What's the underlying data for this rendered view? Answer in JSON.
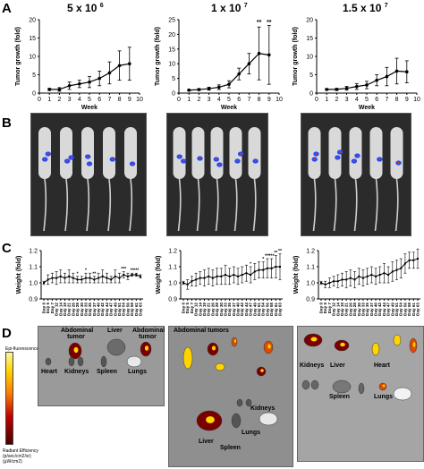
{
  "panels": {
    "A": "A",
    "B": "B",
    "C": "C",
    "D": "D"
  },
  "panelA": [
    {
      "title": "5 x 10",
      "exp": "6"
    },
    {
      "title": "1 x 10",
      "exp": "7"
    },
    {
      "title": "1.5 x 10",
      "exp": "7"
    }
  ],
  "chart_data": [
    {
      "type": "line",
      "title": "5 x 10^6",
      "xlabel": "Week",
      "ylabel": "Tumor growth (fold)",
      "xlim": [
        0,
        10
      ],
      "ylim": [
        0,
        20
      ],
      "xticks": [
        "0",
        "1",
        "2",
        "3",
        "4",
        "5",
        "6",
        "7",
        "8",
        "9",
        "10"
      ],
      "yticks": [
        "0",
        "5",
        "10",
        "15",
        "20"
      ],
      "x": [
        1,
        2,
        3,
        4,
        5,
        6,
        7,
        8,
        9
      ],
      "values": [
        1.0,
        1.0,
        2.0,
        2.5,
        3.0,
        4.0,
        5.5,
        7.5,
        8.0
      ],
      "errors": [
        0.3,
        0.5,
        1.0,
        1.0,
        1.5,
        2.0,
        3.0,
        4.0,
        4.5
      ],
      "significance": []
    },
    {
      "type": "line",
      "title": "1 x 10^7",
      "xlabel": "Week",
      "ylabel": "Tumor growth (fold)",
      "xlim": [
        0,
        10
      ],
      "ylim": [
        0,
        25
      ],
      "xticks": [
        "0",
        "1",
        "2",
        "3",
        "4",
        "5",
        "6",
        "7",
        "8",
        "9",
        "10"
      ],
      "yticks": [
        "0",
        "5",
        "10",
        "15",
        "20",
        "25"
      ],
      "x": [
        1,
        2,
        3,
        4,
        5,
        6,
        7,
        8,
        9
      ],
      "values": [
        1.0,
        1.2,
        1.5,
        2.0,
        3.0,
        6.5,
        10.0,
        13.5,
        13.0
      ],
      "errors": [
        0.2,
        0.3,
        0.5,
        0.8,
        1.2,
        2.0,
        3.5,
        9.0,
        10.0
      ],
      "significance": [
        {
          "x": 8,
          "label": "**"
        },
        {
          "x": 9,
          "label": "**"
        }
      ]
    },
    {
      "type": "line",
      "title": "1.5 x 10^7",
      "xlabel": "Week",
      "ylabel": "Tumor growth (fold)",
      "xlim": [
        0,
        10
      ],
      "ylim": [
        0,
        20
      ],
      "xticks": [
        "0",
        "1",
        "2",
        "3",
        "4",
        "5",
        "6",
        "7",
        "8",
        "9",
        "10"
      ],
      "yticks": [
        "0",
        "5",
        "10",
        "15",
        "20"
      ],
      "x": [
        1,
        2,
        3,
        4,
        5,
        6,
        7,
        8,
        9
      ],
      "values": [
        1.0,
        1.0,
        1.3,
        1.8,
        2.2,
        3.5,
        4.5,
        6.0,
        5.8
      ],
      "errors": [
        0.2,
        0.3,
        0.5,
        0.8,
        1.0,
        1.5,
        2.5,
        3.5,
        3.0
      ],
      "significance": []
    },
    {
      "type": "line",
      "title": "",
      "xlabel": "",
      "ylabel": "Weight (fold)",
      "ylim": [
        0.9,
        1.2
      ],
      "yticks": [
        "0.9",
        "1.0",
        "1.1",
        "1.2"
      ],
      "categories": [
        "Day 0",
        "Day 5",
        "Day 7",
        "Day 12",
        "Day 14",
        "Day 19",
        "Day 21",
        "Day 26",
        "Day 28",
        "Day 30",
        "Day 33",
        "Day 35",
        "Day 37",
        "Day 40",
        "Day 42",
        "Day 44",
        "Day 47",
        "Day 49",
        "Day 51",
        "Day 54",
        "Day 56",
        "Day 58",
        "Day 61",
        "Day 63"
      ],
      "values": [
        1.0,
        1.02,
        1.03,
        1.03,
        1.04,
        1.03,
        1.04,
        1.03,
        1.02,
        1.02,
        1.03,
        1.03,
        1.02,
        1.03,
        1.04,
        1.03,
        1.02,
        1.04,
        1.03,
        1.05,
        1.04,
        1.05,
        1.05,
        1.04
      ],
      "errors": [
        0.01,
        0.03,
        0.03,
        0.04,
        0.04,
        0.03,
        0.04,
        0.03,
        0.02,
        0.02,
        0.03,
        0.03,
        0.02,
        0.03,
        0.04,
        0.03,
        0.02,
        0.04,
        0.03,
        0.02,
        0.02,
        0.01,
        0.01,
        0.01
      ],
      "significance": [
        {
          "index": 8,
          "label": "*"
        },
        {
          "index": 10,
          "label": "*"
        },
        {
          "index": 12,
          "label": "**"
        },
        {
          "index": 19,
          "label": "***"
        },
        {
          "index": 21,
          "label": "**"
        },
        {
          "index": 22,
          "label": "***"
        }
      ]
    },
    {
      "type": "line",
      "title": "",
      "xlabel": "",
      "ylabel": "Weight (fold)",
      "ylim": [
        0.9,
        1.2
      ],
      "yticks": [
        "0.9",
        "1.0",
        "1.1",
        "1.2"
      ],
      "categories": [
        "Day 0",
        "Day 5",
        "Day 7",
        "Day 12",
        "Day 14",
        "Day 19",
        "Day 21",
        "Day 26",
        "Day 28",
        "Day 30",
        "Day 33",
        "Day 35",
        "Day 37",
        "Day 40",
        "Day 42",
        "Day 44",
        "Day 47",
        "Day 49",
        "Day 51",
        "Day 54",
        "Day 56",
        "Day 58",
        "Day 61",
        "Day 63"
      ],
      "values": [
        1.0,
        0.99,
        1.01,
        1.02,
        1.03,
        1.03,
        1.04,
        1.03,
        1.04,
        1.04,
        1.05,
        1.04,
        1.05,
        1.04,
        1.05,
        1.06,
        1.05,
        1.07,
        1.08,
        1.08,
        1.09,
        1.09,
        1.1,
        1.1
      ],
      "errors": [
        0.01,
        0.03,
        0.03,
        0.04,
        0.04,
        0.05,
        0.05,
        0.05,
        0.05,
        0.05,
        0.06,
        0.05,
        0.05,
        0.05,
        0.05,
        0.05,
        0.05,
        0.05,
        0.05,
        0.05,
        0.06,
        0.06,
        0.07,
        0.08
      ],
      "significance": [
        {
          "index": 16,
          "label": "*"
        },
        {
          "index": 19,
          "label": "*"
        },
        {
          "index": 20,
          "label": "***"
        },
        {
          "index": 21,
          "label": "***"
        },
        {
          "index": 22,
          "label": "**"
        },
        {
          "index": 23,
          "label": "**"
        }
      ]
    },
    {
      "type": "line",
      "title": "",
      "xlabel": "",
      "ylabel": "Weight (fold)",
      "ylim": [
        0.9,
        1.2
      ],
      "yticks": [
        "0.9",
        "1.0",
        "1.1",
        "1.2"
      ],
      "categories": [
        "Day 0",
        "Day 5",
        "Day 7",
        "Day 12",
        "Day 14",
        "Day 19",
        "Day 21",
        "Day 26",
        "Day 28",
        "Day 30",
        "Day 33",
        "Day 35",
        "Day 37",
        "Day 40",
        "Day 42",
        "Day 44",
        "Day 47",
        "Day 49",
        "Day 51",
        "Day 54",
        "Day 56",
        "Day 58",
        "Day 61",
        "Day 63"
      ],
      "values": [
        1.0,
        0.99,
        1.0,
        1.01,
        1.01,
        1.02,
        1.02,
        1.03,
        1.02,
        1.04,
        1.03,
        1.04,
        1.05,
        1.04,
        1.05,
        1.06,
        1.05,
        1.07,
        1.08,
        1.09,
        1.12,
        1.14,
        1.14,
        1.15
      ],
      "errors": [
        0.01,
        0.02,
        0.03,
        0.03,
        0.04,
        0.04,
        0.05,
        0.05,
        0.05,
        0.05,
        0.05,
        0.05,
        0.05,
        0.05,
        0.05,
        0.06,
        0.05,
        0.06,
        0.06,
        0.06,
        0.06,
        0.05,
        0.05,
        0.06
      ],
      "significance": []
    }
  ],
  "panelD": {
    "colorbar": {
      "top": "Epi-fluorescence",
      "title": "Radiant Efficiency",
      "units": "(p/sec/cm2/sr)",
      "units2": "(µW/cm2)"
    },
    "p1": {
      "abdominal": "Abdominal tumor",
      "liver": "Liver",
      "abdominal2": "Abdominal tumor",
      "heart": "Heart",
      "kidneys": "Kidneys",
      "spleen": "Spleen",
      "lungs": "Lungs"
    },
    "p2": {
      "title": "Abdominal tumors",
      "kidneys": "Kidneys",
      "liver": "Liver",
      "spleen": "Spleen",
      "lungs": "Lungs"
    },
    "p3": {
      "kidneys": "Kidneys",
      "liver": "Liver",
      "heart": "Heart",
      "spleen": "Spleen",
      "lungs": "Lungs"
    }
  },
  "colors": {
    "line": "#000000",
    "fluor_hot": "#ffd400",
    "fluor_mid": "#e04a00",
    "fluor_low": "#7a0000",
    "bli_blue": "#1f4dff"
  }
}
